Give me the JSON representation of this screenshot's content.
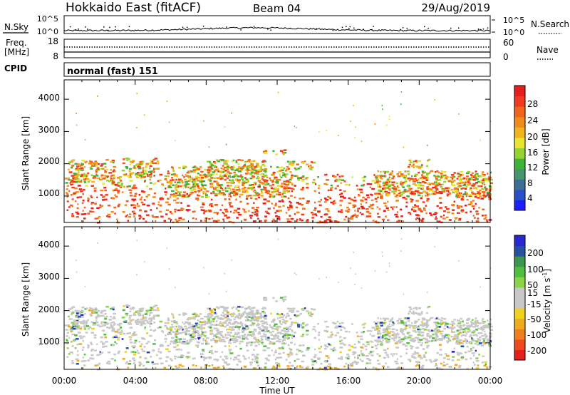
{
  "header": {
    "site": "Hokkaido East (fitACF)",
    "beam": "Beam 04",
    "date": "29/Aug/2019"
  },
  "panel_labels": {
    "nsky": "N.Sky",
    "nsearch": "N.Search",
    "freq_line1": "Freq.",
    "freq_line2": "[MHz]",
    "nave": "Nave",
    "cpid": "CPID",
    "cpid_value": "normal (fast) 151"
  },
  "chart_data": [
    {
      "type": "line",
      "name": "noise",
      "y_left_ticks": [
        "10^5",
        "10^0"
      ],
      "y_right_ticks": [
        "10^5",
        "10^0"
      ],
      "scale": "log",
      "ylim": [
        1,
        100000
      ]
    },
    {
      "type": "line",
      "name": "frequency-nave",
      "y_left_ticks": [
        "18",
        "8"
      ],
      "y_right_ticks": [
        "60",
        "0"
      ],
      "ylim_left": [
        8,
        18
      ],
      "ylim_right": [
        0,
        60
      ],
      "freq_mhz": 10.5,
      "nave": 19
    },
    {
      "type": "heatmap",
      "name": "power",
      "ylabel": "Slant Range [km]",
      "xlabel": "Time UT",
      "x_ticks": [
        "00:00",
        "04:00",
        "08:00",
        "12:00",
        "16:00",
        "20:00",
        "00:00"
      ],
      "xlim_hours": [
        0,
        24
      ],
      "y_ticks": [
        "1000",
        "2000",
        "3000",
        "4000"
      ],
      "ylim_km": [
        180,
        4600
      ],
      "colorbar": {
        "label": "Power [dB]",
        "ticks": [
          "28",
          "24",
          "20",
          "16",
          "12",
          "8",
          "4"
        ],
        "range": [
          0,
          32
        ],
        "colors": [
          "#1e1eff",
          "#2850c8",
          "#3c6e96",
          "#46966e",
          "#3cb43c",
          "#96d232",
          "#e6e632",
          "#f0b41e",
          "#f08c1e",
          "#f0641e",
          "#f03c1e",
          "#e61e1e"
        ]
      },
      "echo_regions": [
        {
          "t0": 0.0,
          "t1": 24.0,
          "r0": 200,
          "r1": 1700
        },
        {
          "t0": 0.2,
          "t1": 2.8,
          "r0": 1450,
          "r1": 2150
        },
        {
          "t0": 3.2,
          "t1": 5.3,
          "r0": 1600,
          "r1": 2200
        },
        {
          "t0": 5.8,
          "t1": 12.8,
          "r0": 1000,
          "r1": 1950
        },
        {
          "t0": 8.0,
          "t1": 11.5,
          "r0": 1750,
          "r1": 2150
        },
        {
          "t0": 11.2,
          "t1": 12.4,
          "r0": 2300,
          "r1": 2450
        },
        {
          "t0": 12.5,
          "t1": 14.0,
          "r0": 1850,
          "r1": 2100
        },
        {
          "t0": 17.5,
          "t1": 24.0,
          "r0": 1000,
          "r1": 1800
        },
        {
          "t0": 19.3,
          "t1": 20.5,
          "r0": 1900,
          "r1": 2150
        }
      ]
    },
    {
      "type": "heatmap",
      "name": "velocity",
      "ylabel": "Slant Range [km]",
      "xlabel": "Time UT",
      "x_ticks": [
        "00:00",
        "04:00",
        "08:00",
        "12:00",
        "16:00",
        "20:00",
        "00:00"
      ],
      "xlim_hours": [
        0,
        24
      ],
      "y_ticks": [
        "1000",
        "2000",
        "3000",
        "4000"
      ],
      "ylim_km": [
        180,
        4600
      ],
      "colorbar": {
        "label_prefix": "Velocity [m s",
        "label_exp": "-1",
        "label_suffix": "]",
        "ticks": [
          "200",
          "100",
          "50",
          "15",
          "-15",
          "-50",
          "-100",
          "-200"
        ],
        "range": [
          -250,
          250
        ],
        "colors": [
          "#e61e1e",
          "#f04b1e",
          "#f07d1e",
          "#f0aa1e",
          "#f0d21e",
          "#c8c8c8",
          "#c8c8c8",
          "#8cd246",
          "#50be3c",
          "#3c9650",
          "#2850a0",
          "#2828d2"
        ]
      }
    }
  ]
}
